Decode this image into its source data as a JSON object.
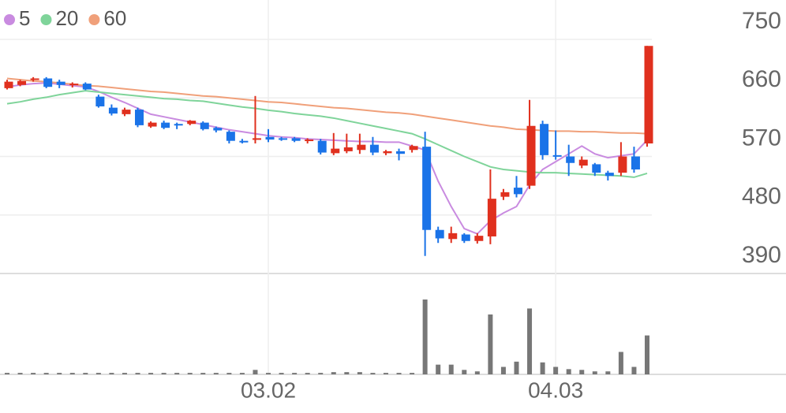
{
  "chart_data": {
    "type": "candlestick",
    "categories": [
      null,
      null,
      null,
      null,
      null,
      null,
      null,
      null,
      null,
      null,
      null,
      null,
      null,
      null,
      null,
      null,
      null,
      null,
      null,
      null,
      "03.02",
      null,
      null,
      null,
      null,
      null,
      null,
      null,
      null,
      null,
      null,
      null,
      null,
      null,
      null,
      null,
      null,
      null,
      null,
      null,
      null,
      null,
      "04.03",
      null,
      null,
      null,
      null,
      null,
      null,
      null
    ],
    "open": [
      675,
      680,
      688,
      690,
      685,
      680,
      682,
      662,
      645,
      635,
      642,
      616,
      622,
      620,
      620,
      622,
      614,
      608,
      594,
      596,
      600,
      598,
      598,
      594,
      594,
      575,
      578,
      580,
      588,
      575,
      578,
      580,
      585,
      457,
      443,
      450,
      440,
      447,
      508,
      522,
      525,
      620,
      572,
      570,
      556,
      558,
      545,
      545,
      570,
      590
    ],
    "high": [
      688,
      688,
      692,
      692,
      688,
      684,
      684,
      665,
      650,
      645,
      645,
      624,
      625,
      622,
      626,
      624,
      616,
      610,
      597,
      663,
      612,
      600,
      600,
      598,
      597,
      606,
      605,
      605,
      600,
      580,
      582,
      588,
      608,
      462,
      462,
      452,
      452,
      550,
      520,
      540,
      657,
      625,
      610,
      588,
      570,
      560,
      548,
      592,
      585,
      740
    ],
    "low": [
      673,
      678,
      685,
      675,
      675,
      676,
      672,
      645,
      633,
      632,
      615,
      614,
      612,
      612,
      618,
      610,
      607,
      590,
      590,
      590,
      592,
      594,
      592,
      590,
      573,
      572,
      575,
      574,
      572,
      572,
      564,
      576,
      417,
      437,
      437,
      437,
      436,
      435,
      503,
      507,
      520,
      565,
      565,
      540,
      552,
      540,
      533,
      540,
      545,
      585
    ],
    "close": [
      685,
      686,
      690,
      677,
      680,
      682,
      673,
      647,
      636,
      642,
      618,
      622,
      614,
      618,
      625,
      612,
      610,
      594,
      592,
      598,
      596,
      596,
      594,
      596,
      576,
      582,
      584,
      588,
      576,
      578,
      574,
      586,
      457,
      444,
      452,
      440,
      448,
      505,
      515,
      512,
      617,
      572,
      570,
      560,
      565,
      545,
      540,
      570,
      550,
      740
    ],
    "up_color": "#e0301e",
    "down_color": "#1a73e8",
    "series": [
      {
        "name": "5",
        "color": "#c98be0",
        "values": [
          677,
          680,
          682,
          683,
          681,
          679,
          677,
          670,
          661,
          653,
          644,
          635,
          631,
          627,
          623,
          619,
          615,
          611,
          608,
          605,
          602,
          600,
          599,
          597,
          596,
          595,
          594,
          593,
          593,
          592,
          592,
          586,
          580,
          532,
          493,
          459,
          451,
          471,
          483,
          493,
          526,
          550,
          562,
          574,
          586,
          574,
          568,
          571,
          574,
          595
        ]
      },
      {
        "name": "20",
        "color": "#7fd49a",
        "values": [
          651,
          654,
          658,
          661,
          665,
          668,
          671,
          669,
          667,
          665,
          663,
          661,
          659,
          658,
          656,
          655,
          652,
          649,
          646,
          644,
          641,
          639,
          636,
          634,
          632,
          629,
          625,
          621,
          617,
          613,
          609,
          605,
          597,
          588,
          579,
          570,
          562,
          554,
          550,
          548,
          546,
          545,
          545,
          544,
          543,
          542,
          541,
          540,
          538,
          544
        ]
      },
      {
        "name": "60",
        "color": "#f0a07a",
        "values": [
          690,
          688,
          686,
          685,
          683,
          681,
          679,
          678,
          676,
          674,
          672,
          670,
          669,
          667,
          665,
          663,
          662,
          660,
          658,
          656,
          654,
          653,
          651,
          649,
          647,
          645,
          644,
          642,
          640,
          638,
          637,
          635,
          632,
          629,
          626,
          623,
          620,
          617,
          615,
          612,
          611,
          610,
          609,
          609,
          608,
          608,
          607,
          606,
          606,
          605
        ]
      }
    ],
    "volume": [
      2,
      2,
      2,
      2,
      2,
      2,
      2,
      2,
      2,
      2,
      2,
      2,
      2,
      2,
      2,
      2,
      2,
      2,
      2,
      6,
      2,
      2,
      2,
      2,
      2,
      3,
      3,
      3,
      2,
      2,
      2,
      2,
      100,
      13,
      13,
      6,
      4,
      80,
      10,
      17,
      88,
      16,
      10,
      7,
      6,
      4,
      4,
      30,
      10,
      52
    ],
    "volume_color": "#777777",
    "volume_lim": [
      0,
      100
    ],
    "ylim": [
      390,
      750
    ],
    "yticks": [
      390,
      480,
      570,
      660,
      750
    ],
    "grid": true
  }
}
